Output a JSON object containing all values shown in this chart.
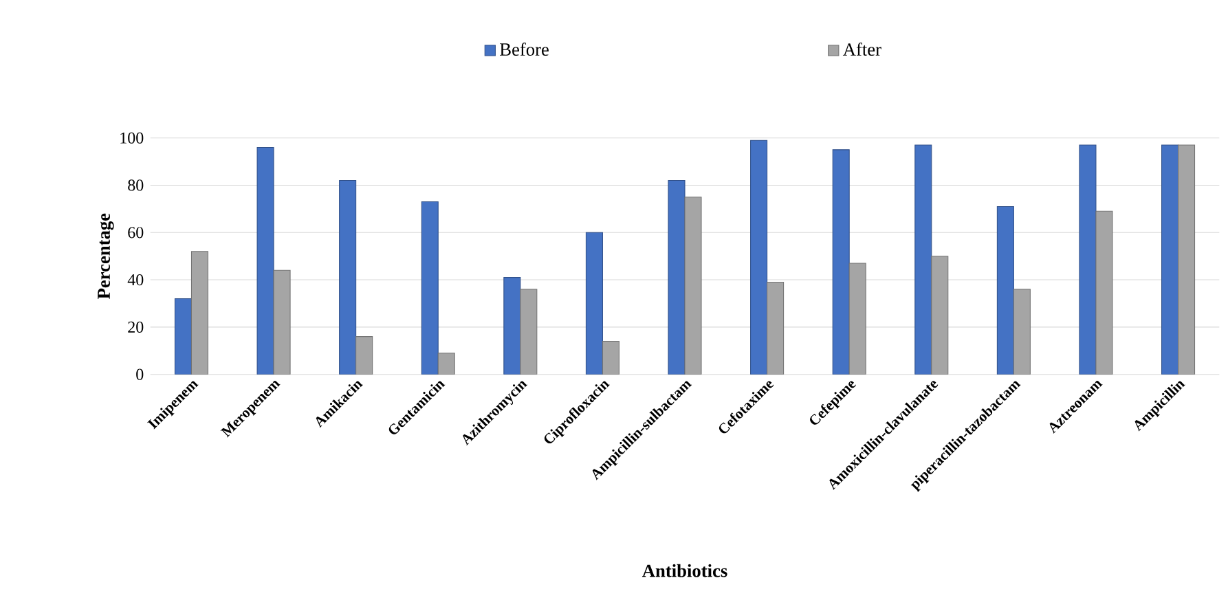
{
  "chart_data": {
    "type": "bar",
    "xlabel": "Antibiotics",
    "ylabel": "Percentage",
    "categories": [
      "Imipenem",
      "Meropenem",
      "Amikacin",
      "Gentamicin",
      "Azithromycin",
      "Ciprofloxacin",
      "Ampicillin-sulbactam",
      "Cefotaxime",
      "Cefepime",
      "Amoxicillin-clavulanate",
      "piperacillin-tazobactam",
      "Aztreonam",
      "Ampicillin"
    ],
    "series": [
      {
        "name": "Before",
        "color": "#4472c4",
        "values": [
          32,
          96,
          82,
          73,
          41,
          60,
          82,
          99,
          95,
          97,
          71,
          97,
          97
        ]
      },
      {
        "name": "After",
        "color": "#a5a5a5",
        "values": [
          52,
          44,
          16,
          9,
          36,
          14,
          75,
          39,
          47,
          50,
          36,
          69,
          97
        ]
      }
    ],
    "ylim": [
      0,
      100
    ],
    "yticks": [
      0,
      20,
      40,
      60,
      80,
      100
    ],
    "grid": "y",
    "legend": "top"
  }
}
